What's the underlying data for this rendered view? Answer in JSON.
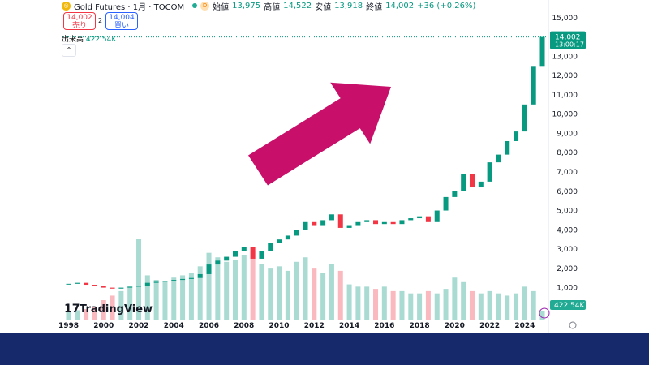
{
  "header": {
    "symbol": "Gold Futures · 1月 · TOCOM",
    "interval_badge": "D",
    "open_label": "始値",
    "open": "13,975",
    "high_label": "高値",
    "high": "14,522",
    "low_label": "安値",
    "low": "13,918",
    "close_label": "終値",
    "close": "14,002",
    "change": "+36 (+0.26%)"
  },
  "trade": {
    "sell_price": "14,002",
    "sell_label": "売り",
    "spread": "2",
    "buy_price": "14,004",
    "buy_label": "買い"
  },
  "volume_legend": {
    "label": "出来高",
    "value": "422.54K"
  },
  "logo": "TradingView",
  "chart_data": {
    "type": "candlestick",
    "x": [
      1998,
      1998.5,
      1999,
      1999.5,
      2000,
      2000.5,
      2001,
      2001.5,
      2002,
      2002.5,
      2003,
      2003.5,
      2004,
      2004.5,
      2005,
      2005.5,
      2006,
      2006.5,
      2007,
      2007.5,
      2008,
      2008.5,
      2009,
      2009.5,
      2010,
      2010.5,
      2011,
      2011.5,
      2012,
      2012.5,
      2013,
      2013.5,
      2014,
      2014.5,
      2015,
      2015.5,
      2016,
      2016.5,
      2017,
      2017.5,
      2018,
      2018.5,
      2019,
      2019.5,
      2020,
      2020.5,
      2021,
      2021.5,
      2022,
      2022.5,
      2023,
      2023.5,
      2024,
      2024.5,
      2025
    ],
    "values": [
      1200,
      1250,
      1150,
      1100,
      1000,
      950,
      1000,
      1050,
      1100,
      1250,
      1300,
      1350,
      1400,
      1450,
      1500,
      1700,
      2200,
      2400,
      2600,
      2900,
      3100,
      2500,
      2900,
      3300,
      3500,
      3700,
      4000,
      4400,
      4200,
      4500,
      4800,
      4100,
      4200,
      4400,
      4500,
      4300,
      4400,
      4300,
      4500,
      4600,
      4700,
      4400,
      5000,
      5700,
      6000,
      6900,
      6200,
      6500,
      7500,
      7900,
      8600,
      9100,
      10500,
      12500,
      14002
    ],
    "volume": [
      400,
      450,
      500,
      600,
      900,
      1100,
      1300,
      1500,
      3600,
      2000,
      1800,
      1700,
      1900,
      2000,
      2100,
      2400,
      3000,
      2800,
      2600,
      2700,
      2900,
      3100,
      2500,
      2300,
      2400,
      2200,
      2600,
      2800,
      2300,
      2100,
      2500,
      2200,
      1600,
      1500,
      1500,
      1400,
      1500,
      1300,
      1300,
      1200,
      1200,
      1300,
      1200,
      1400,
      1900,
      1700,
      1300,
      1200,
      1300,
      1200,
      1100,
      1200,
      1500,
      1300,
      422.54
    ],
    "up_color": "#089981",
    "down_color": "#f23645",
    "xlim": [
      1997.7,
      2025.3
    ],
    "xticks": [
      1998,
      2000,
      2002,
      2004,
      2006,
      2008,
      2010,
      2012,
      2014,
      2016,
      2018,
      2020,
      2022,
      2024
    ],
    "ylim": [
      -700,
      15500
    ],
    "yticks": [
      {
        "value": 1000,
        "label": "1,000"
      },
      {
        "value": 2000,
        "label": "2,000"
      },
      {
        "value": 3000,
        "label": "3,000"
      },
      {
        "value": 4000,
        "label": "4,000"
      },
      {
        "value": 5000,
        "label": "5,000"
      },
      {
        "value": 6000,
        "label": "6,000"
      },
      {
        "value": 7000,
        "label": "7,000"
      },
      {
        "value": 8000,
        "label": "8,000"
      },
      {
        "value": 9000,
        "label": "9,000"
      },
      {
        "value": 10000,
        "label": "10,000"
      },
      {
        "value": 11000,
        "label": "11,000"
      },
      {
        "value": 12000,
        "label": "12,000"
      },
      {
        "value": 13000,
        "label": "13,000"
      },
      {
        "value": 14000,
        "label": "14,000"
      },
      {
        "value": 15000,
        "label": "15,000"
      }
    ],
    "last_price": {
      "value": 14002,
      "label": "14,002"
    },
    "countdown": "13:00:17",
    "volume_tag": "422.54K"
  }
}
